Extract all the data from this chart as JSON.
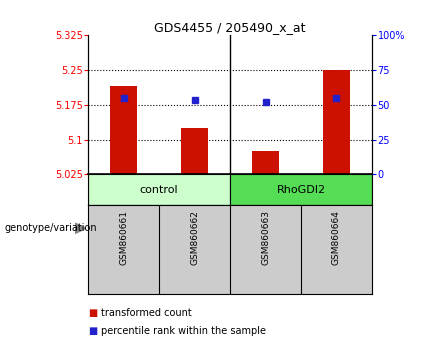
{
  "title": "GDS4455 / 205490_x_at",
  "samples": [
    "GSM860661",
    "GSM860662",
    "GSM860663",
    "GSM860664"
  ],
  "groups": [
    "control",
    "control",
    "RhoGDI2",
    "RhoGDI2"
  ],
  "group_labels": [
    "control",
    "RhoGDI2"
  ],
  "group_colors_light": [
    "#ccffcc",
    "#55dd55"
  ],
  "bar_values": [
    5.215,
    5.125,
    5.075,
    5.25
  ],
  "dot_values": [
    5.19,
    5.185,
    5.182,
    5.19
  ],
  "ylim": [
    5.025,
    5.325
  ],
  "yticks": [
    5.025,
    5.1,
    5.175,
    5.25,
    5.325
  ],
  "ytick_labels": [
    "5.025",
    "5.1",
    "5.175",
    "5.25",
    "5.325"
  ],
  "y2ticks": [
    0,
    25,
    50,
    75,
    100
  ],
  "y2tick_labels": [
    "0",
    "25",
    "50",
    "75",
    "100%"
  ],
  "hlines": [
    5.1,
    5.175,
    5.25
  ],
  "bar_color": "#cc1100",
  "dot_color": "#2222cc",
  "bar_bottom": 5.025,
  "legend_items": [
    "transformed count",
    "percentile rank within the sample"
  ],
  "legend_colors": [
    "#cc1100",
    "#2222cc"
  ],
  "xlabel_left": "genotype/variation",
  "sample_bg": "#cccccc",
  "plot_bg": "#ffffff"
}
